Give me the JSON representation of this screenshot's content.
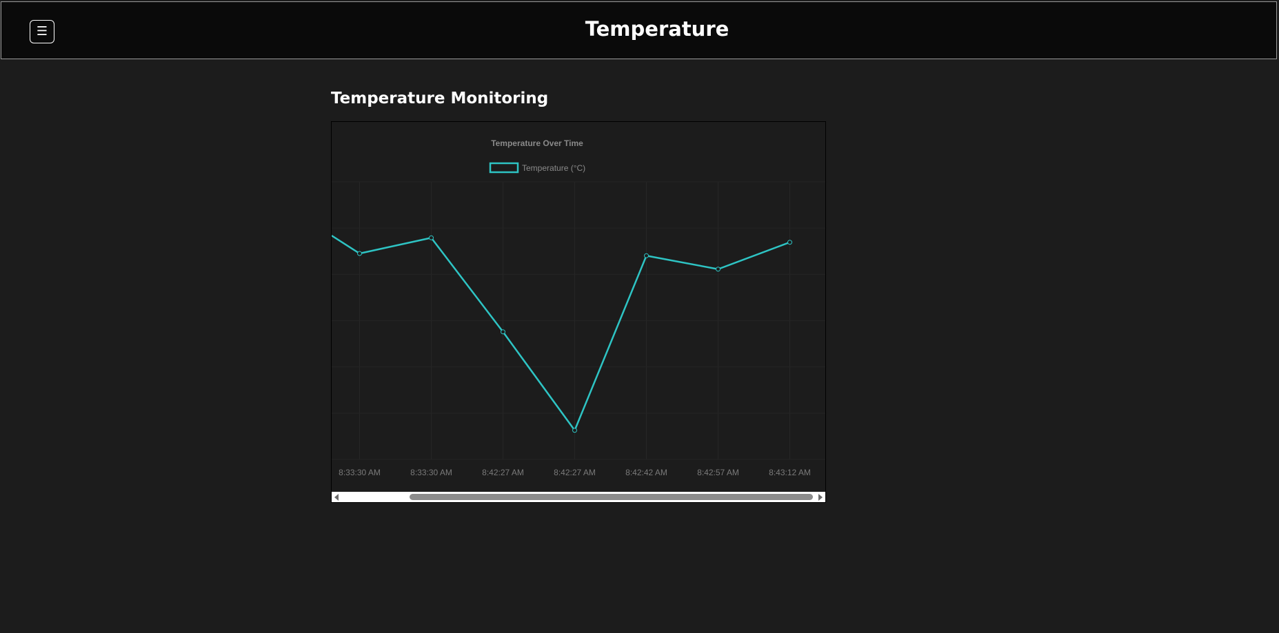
{
  "header": {
    "menu_icon": "☰",
    "title": "Temperature"
  },
  "main": {
    "section_title": "Temperature Monitoring"
  },
  "chart_data": {
    "type": "line",
    "title": "Temperature Over Time",
    "series": [
      {
        "name": "Temperature (°C)",
        "color": "#2ec4c4",
        "values": [
          23.4,
          23.75,
          21.65,
          19.45,
          23.35,
          23.05,
          23.65
        ]
      }
    ],
    "categories": [
      "8:33:30 AM",
      "8:33:30 AM",
      "8:42:27 AM",
      "8:42:27 AM",
      "8:42:42 AM",
      "8:42:57 AM",
      "8:43:12 AM"
    ],
    "leading_value": 23.8,
    "ylim": [
      18.8,
      25.0
    ],
    "grid": true,
    "legend_position": "top-center",
    "y_tick_labels_visible": false
  },
  "scrollbar": {
    "left_arrow": "scroll-left-arrow",
    "right_arrow": "scroll-right-arrow"
  }
}
